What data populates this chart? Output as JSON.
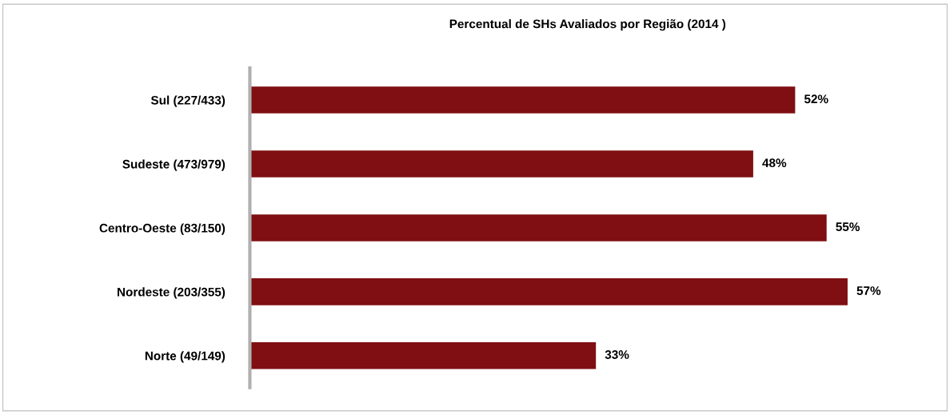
{
  "chart_data": {
    "type": "bar",
    "orientation": "horizontal",
    "title": "Percentual de SHs Avaliados por Região (2014 )",
    "categories": [
      "Sul (227/433)",
      "Sudeste (473/979)",
      "Centro-Oeste (83/150)",
      "Nordeste (203/355)",
      "Norte (49/149)"
    ],
    "values": [
      52,
      48,
      55,
      57,
      33
    ],
    "value_labels": [
      "52%",
      "48%",
      "55%",
      "57%",
      "33%"
    ],
    "color": "#7f0f12",
    "grid": false,
    "legend": false
  }
}
